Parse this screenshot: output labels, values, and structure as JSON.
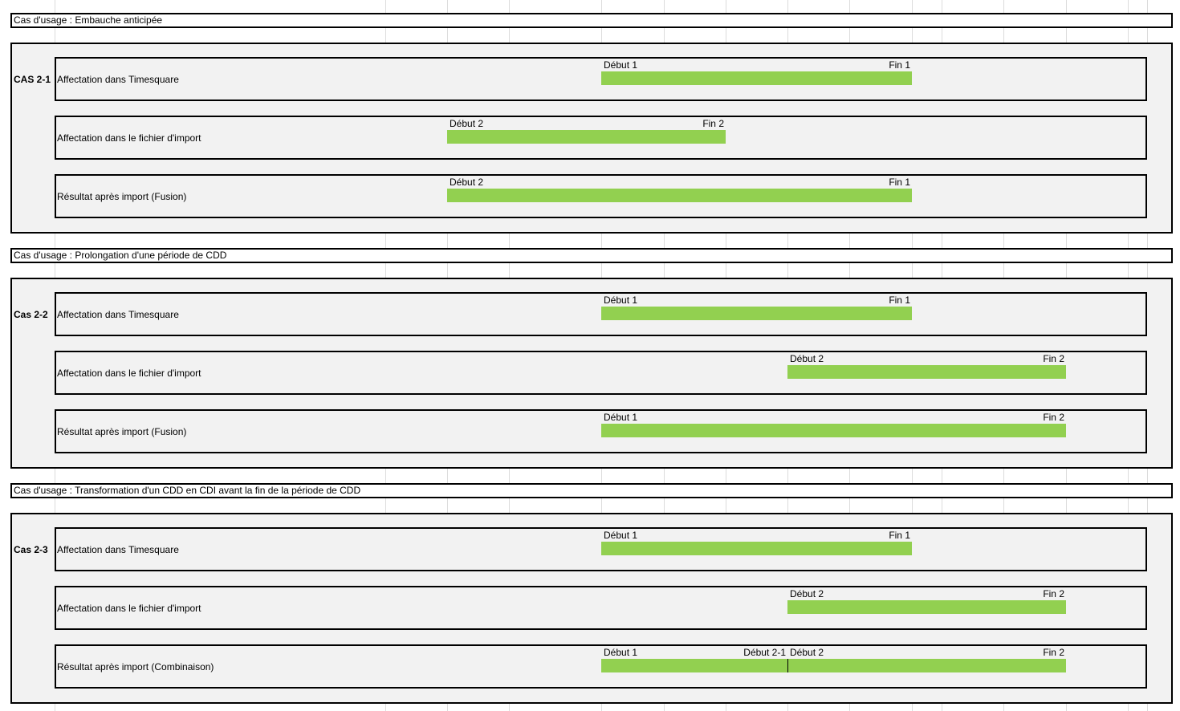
{
  "sections": [
    {
      "header": "Cas d'usage : Embauche anticipée",
      "case_label": "CAS 2-1",
      "rows": [
        {
          "label": "Affectation dans Timesquare",
          "start_label": "Début 1",
          "end_label": "Fin 1"
        },
        {
          "label": "Affectation dans le fichier d'import",
          "start_label": "Début 2",
          "end_label": "Fin 2"
        },
        {
          "label": "Résultat après import (Fusion)",
          "start_label": "Début 2",
          "end_label": "Fin 1"
        }
      ]
    },
    {
      "header": "Cas d'usage : Prolongation d'une période de CDD",
      "case_label": "Cas 2-2",
      "rows": [
        {
          "label": "Affectation dans Timesquare",
          "start_label": "Début 1",
          "end_label": "Fin 1"
        },
        {
          "label": "Affectation dans le fichier d'import",
          "start_label": "Début 2",
          "end_label": "Fin 2"
        },
        {
          "label": "Résultat après import (Fusion)",
          "start_label": "Début 1",
          "end_label": "Fin 2"
        }
      ]
    },
    {
      "header": "Cas d'usage : Transformation d'un CDD en CDI avant la fin de la période de CDD",
      "case_label": "Cas 2-3",
      "rows": [
        {
          "label": "Affectation dans Timesquare",
          "start_label": "Début 1",
          "end_label": "Fin 1"
        },
        {
          "label": "Affectation dans le fichier d'import",
          "start_label": "Début 2",
          "end_label": "Fin 2"
        },
        {
          "label": "Résultat après import (Combinaison)",
          "start_label": "Début 1",
          "end_label": "Fin 2",
          "split_before_label": "Début 2-1",
          "split_after_label": "Début 2"
        }
      ]
    }
  ],
  "colors": {
    "bar": "#92d050",
    "panel": "#f2f2f2",
    "border": "#000000",
    "gridline": "#dcdcdc"
  }
}
